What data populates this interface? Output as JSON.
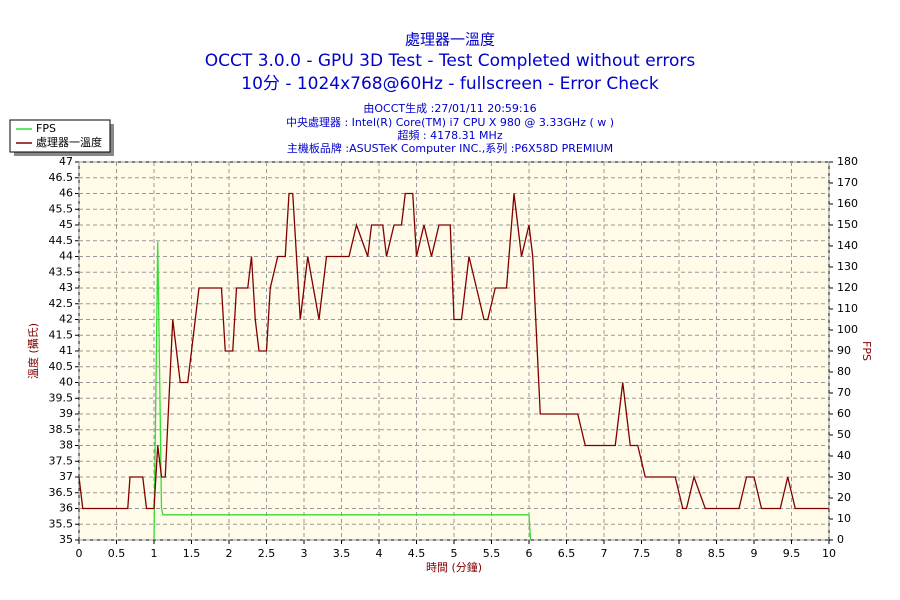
{
  "chart_data": {
    "type": "line",
    "title": "處理器一溫度",
    "subtitle": "OCCT 3.0.0 - GPU 3D Test - Test Completed without errors",
    "subtitle2": "10分 - 1024x768@60Hz - fullscreen - Error Check",
    "info": [
      "由OCCT生成 :27/01/11 20:59:16",
      "中央處理器 : Intel(R) Core(TM) i7 CPU X 980 @ 3.33GHz ( w  )",
      "超頻 : 4178.31 MHz",
      "主機板品牌 :ASUSTeK Computer INC.,系列 :P6X58D PREMIUM"
    ],
    "xlabel": "時間 (分鐘)",
    "ylabel": "溫度 (攝氏)",
    "y2label": "FPS",
    "xlim": [
      0,
      10
    ],
    "xticks": [
      0,
      0.5,
      1,
      1.5,
      2,
      2.5,
      3,
      3.5,
      4,
      4.5,
      5,
      5.5,
      6,
      6.5,
      7,
      7.5,
      8,
      8.5,
      9,
      9.5,
      10
    ],
    "ylim": [
      35,
      47
    ],
    "yticks": [
      35,
      35.5,
      36,
      36.5,
      37,
      37.5,
      38,
      38.5,
      39,
      39.5,
      40,
      40.5,
      41,
      41.5,
      42,
      42.5,
      43,
      43.5,
      44,
      44.5,
      45,
      45.5,
      46,
      46.5,
      47
    ],
    "y2lim": [
      0,
      180
    ],
    "y2ticks": [
      0,
      10,
      20,
      30,
      40,
      50,
      60,
      70,
      80,
      90,
      100,
      110,
      120,
      130,
      140,
      150,
      160,
      170,
      180
    ],
    "grid": true,
    "legend": "upper left",
    "series": [
      {
        "name": "FPS",
        "color": "#33dd33",
        "axis": "y2",
        "x": [
          1.0,
          1.0,
          1.05,
          1.1,
          1.12,
          6.0,
          6.02
        ],
        "values": [
          0,
          0,
          142,
          15,
          12,
          12,
          0
        ]
      },
      {
        "name": "處理器一溫度",
        "color": "#800000",
        "x": [
          0,
          0.05,
          0.65,
          0.68,
          0.85,
          0.9,
          1.0,
          1.05,
          1.1,
          1.15,
          1.25,
          1.3,
          1.35,
          1.45,
          1.5,
          1.6,
          1.9,
          1.95,
          2.05,
          2.1,
          2.25,
          2.3,
          2.35,
          2.4,
          2.5,
          2.55,
          2.65,
          2.75,
          2.8,
          2.85,
          2.95,
          3.05,
          3.2,
          3.3,
          3.6,
          3.7,
          3.85,
          3.9,
          4.05,
          4.1,
          4.2,
          4.3,
          4.35,
          4.45,
          4.5,
          4.6,
          4.7,
          4.8,
          4.95,
          5.0,
          5.1,
          5.2,
          5.3,
          5.4,
          5.45,
          5.55,
          5.7,
          5.8,
          5.9,
          6.0,
          6.05,
          6.15,
          6.65,
          6.75,
          7.15,
          7.25,
          7.35,
          7.45,
          7.55,
          7.95,
          8.05,
          8.1,
          8.2,
          8.35,
          8.8,
          8.9,
          9.0,
          9.1,
          9.35,
          9.45,
          9.55,
          10
        ],
        "values": [
          37,
          36,
          36,
          37,
          37,
          36,
          36,
          38,
          37,
          37,
          42,
          41,
          40,
          40,
          41,
          43,
          43,
          41,
          41,
          43,
          43,
          44,
          42,
          41,
          41,
          43,
          44,
          44,
          46,
          46,
          42,
          44,
          42,
          44,
          44,
          45,
          44,
          45,
          45,
          44,
          45,
          45,
          46,
          46,
          44,
          45,
          44,
          45,
          45,
          42,
          42,
          44,
          43,
          42,
          42,
          43,
          43,
          46,
          44,
          45,
          44,
          39,
          39,
          38,
          38,
          40,
          38,
          38,
          37,
          37,
          36,
          36,
          37,
          36,
          36,
          37,
          37,
          36,
          36,
          37,
          36,
          36
        ]
      }
    ]
  }
}
